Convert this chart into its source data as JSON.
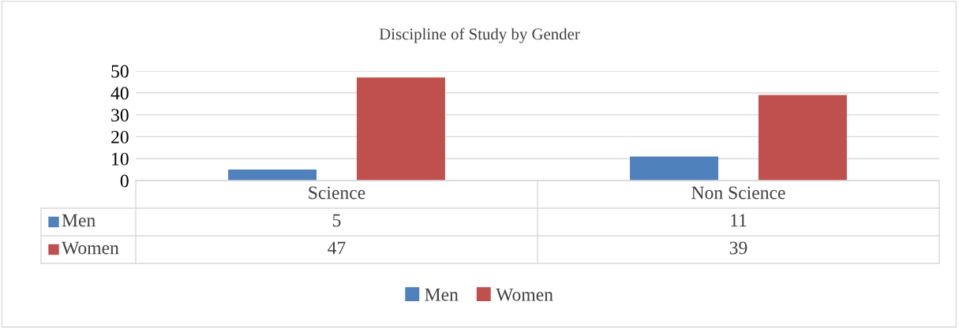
{
  "chart_data": {
    "type": "bar",
    "title": "Discipline of Study by Gender",
    "categories": [
      "Science",
      "Non Science"
    ],
    "series": [
      {
        "name": "Men",
        "color": "#4f81bd",
        "values": [
          5,
          11
        ]
      },
      {
        "name": "Women",
        "color": "#c0504d",
        "values": [
          47,
          39
        ]
      }
    ],
    "ylim": [
      0,
      50
    ],
    "yticks": [
      0,
      10,
      20,
      30,
      40,
      50
    ],
    "grid": "y",
    "legend": "bottom",
    "data_labels": true
  }
}
